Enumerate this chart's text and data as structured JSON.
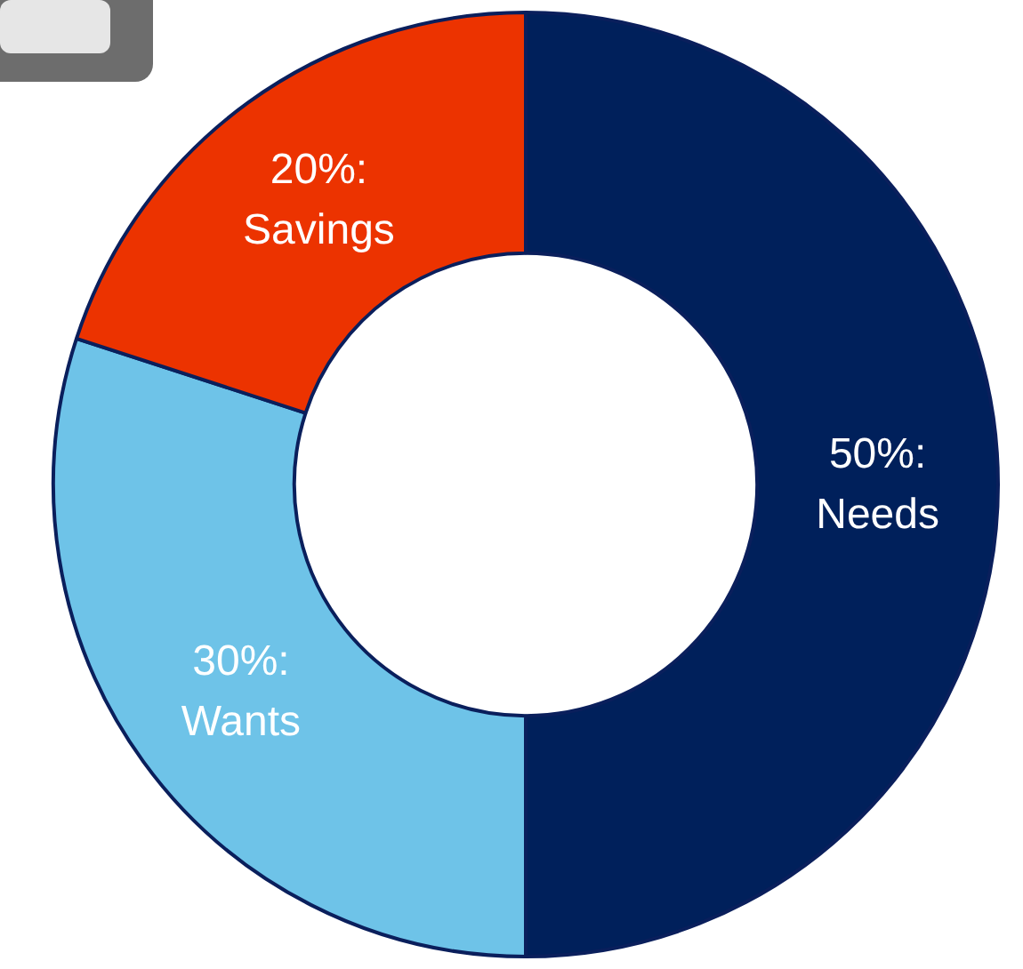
{
  "chart_data": {
    "type": "donut",
    "categories": [
      "Needs",
      "Wants",
      "Savings"
    ],
    "values": [
      50,
      30,
      20
    ],
    "colors": [
      "#00205b",
      "#6ec3e8",
      "#ec3300"
    ],
    "value_labels": [
      "50%:",
      "30%:",
      "20%:"
    ],
    "legend": false
  }
}
